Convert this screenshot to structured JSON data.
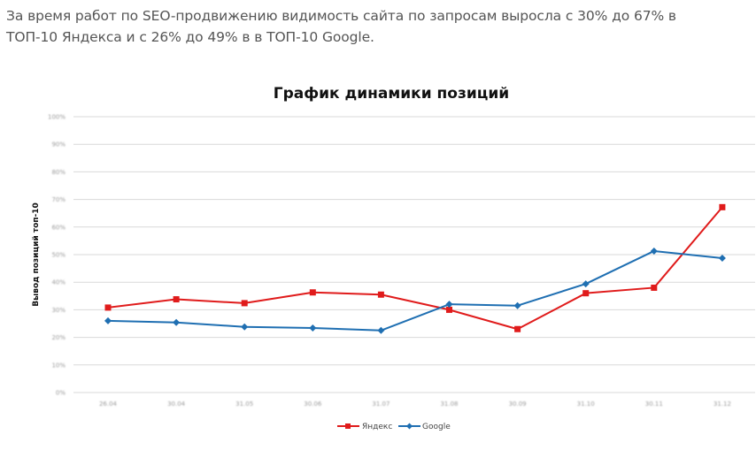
{
  "intro": {
    "line1": "За время работ по SEO-продвижению видимость сайта по запросам выросла с 30% до 67% в",
    "line2": "ТОП-10 Яндекса и с 26% до 49% в в ТОП-10 Google."
  },
  "chart_data": {
    "type": "line",
    "title": "График динамики позиций",
    "xlabel": "",
    "ylabel": "Вывод позиций топ-10",
    "categories": [
      "26.04",
      "30.04",
      "31.05",
      "30.06",
      "31.07",
      "31.08",
      "30.09",
      "31.10",
      "30.11",
      "31.12"
    ],
    "ylim": [
      0,
      100
    ],
    "yticks": [
      "0%",
      "10%",
      "20%",
      "30%",
      "40%",
      "50%",
      "60%",
      "70%",
      "80%",
      "90%",
      "100%"
    ],
    "grid": true,
    "legend_position": "bottom",
    "series": [
      {
        "name": "Яндекс",
        "color": "#e01b1b",
        "marker": "square",
        "values": [
          30.8,
          33.8,
          32.4,
          36.3,
          35.5,
          30.0,
          23.0,
          36.0,
          38.0,
          67.2
        ]
      },
      {
        "name": "Google",
        "color": "#1f6fb2",
        "marker": "diamond",
        "values": [
          26.0,
          25.4,
          23.8,
          23.4,
          22.5,
          32.0,
          31.5,
          39.4,
          51.3,
          48.7
        ]
      }
    ]
  }
}
